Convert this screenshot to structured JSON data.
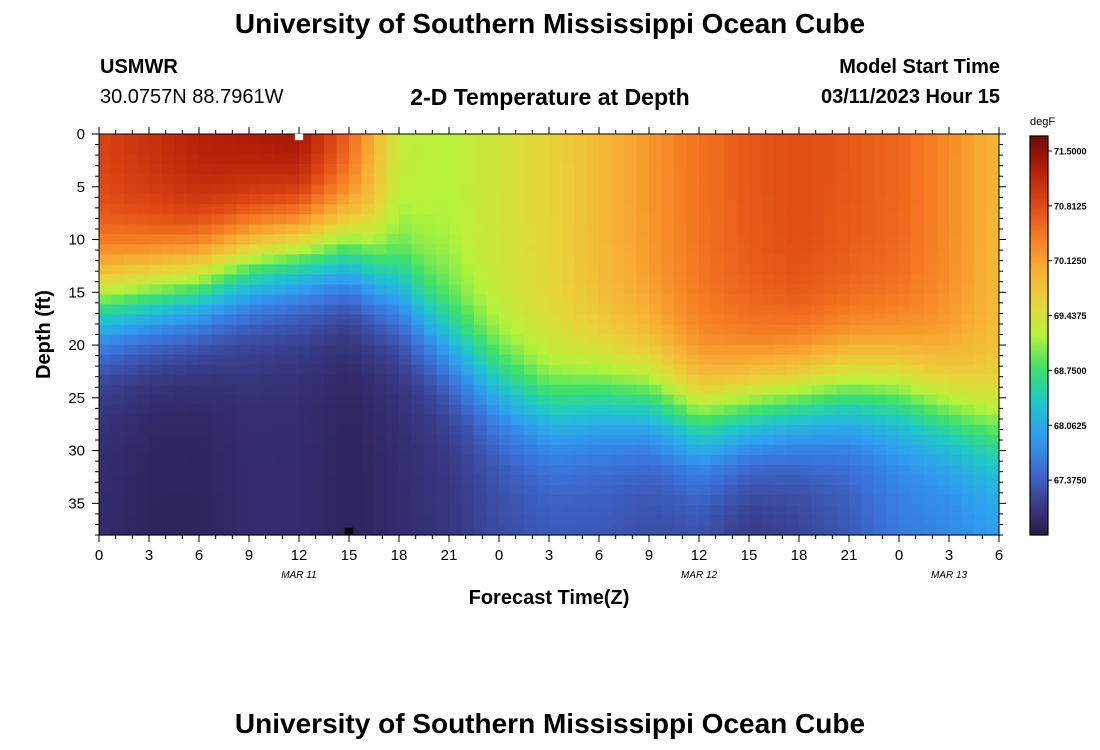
{
  "header": {
    "title": "University of Southern Mississippi Ocean Cube",
    "station": "USMWR",
    "coords": "30.0757N  88.7961W",
    "subtitle": "2-D Temperature at Depth",
    "start_label": "Model Start Time",
    "start_value": "03/11/2023 Hour 15"
  },
  "footer": {
    "title": "University of Southern Mississippi Ocean Cube"
  },
  "chart_data": {
    "type": "heatmap",
    "title": "2-D Temperature at Depth",
    "xlabel": "Forecast Time(Z)",
    "ylabel": "Depth (ft)",
    "x_ticks": [
      "0",
      "3",
      "6",
      "9",
      "12",
      "15",
      "18",
      "21",
      "0",
      "3",
      "6",
      "9",
      "12",
      "15",
      "18",
      "21",
      "0",
      "3",
      "6"
    ],
    "x_range_hours": [
      0,
      54
    ],
    "date_labels": [
      {
        "label": "MAR 11",
        "hour": 12
      },
      {
        "label": "MAR 12",
        "hour": 36
      },
      {
        "label": "MAR 13",
        "hour": 51
      }
    ],
    "y_ticks": [
      0,
      5,
      10,
      15,
      20,
      25,
      30,
      35
    ],
    "y_range_ft": [
      0,
      38
    ],
    "colorbar": {
      "units": "degF",
      "min": 66.6875,
      "max": 71.6875,
      "labels": [
        "71.5000",
        "70.8125",
        "70.1250",
        "69.4375",
        "68.7500",
        "68.0625",
        "67.3750"
      ],
      "colors": [
        "#2c1a4a",
        "#3a3f8f",
        "#3c6fd6",
        "#2f9ef0",
        "#1fc8c8",
        "#3ee06a",
        "#b6f23a",
        "#e8d33a",
        "#f8ae34",
        "#f57a22",
        "#dd4514",
        "#b51f08",
        "#6e0a05"
      ]
    },
    "profile": {
      "hours": [
        0,
        3,
        6,
        9,
        12,
        15,
        18,
        21,
        24,
        27,
        30,
        33,
        36,
        39,
        42,
        45,
        48,
        51,
        54
      ],
      "mixed_layer_depth_ft": [
        16,
        15,
        14,
        12,
        11,
        11,
        15,
        20,
        24,
        26,
        25,
        25,
        27,
        26,
        25,
        24,
        24,
        26,
        28
      ],
      "surface_temp_degF": [
        70.9,
        71.1,
        71.3,
        71.4,
        71.5,
        70.7,
        69.3,
        69.2,
        69.4,
        69.6,
        69.9,
        70.2,
        70.5,
        70.7,
        70.8,
        70.7,
        70.6,
        70.3,
        69.9
      ],
      "bottom_temp_degF": [
        66.9,
        66.8,
        66.8,
        66.9,
        66.9,
        66.8,
        66.9,
        67.0,
        67.2,
        67.3,
        67.3,
        67.2,
        67.2,
        67.0,
        67.1,
        67.3,
        67.6,
        67.7,
        67.9
      ]
    },
    "markers": [
      {
        "hour": 12,
        "depth_ft": 0,
        "color": "#ffffff"
      },
      {
        "hour": 15,
        "depth_ft": 38,
        "color": "#000000"
      }
    ]
  }
}
